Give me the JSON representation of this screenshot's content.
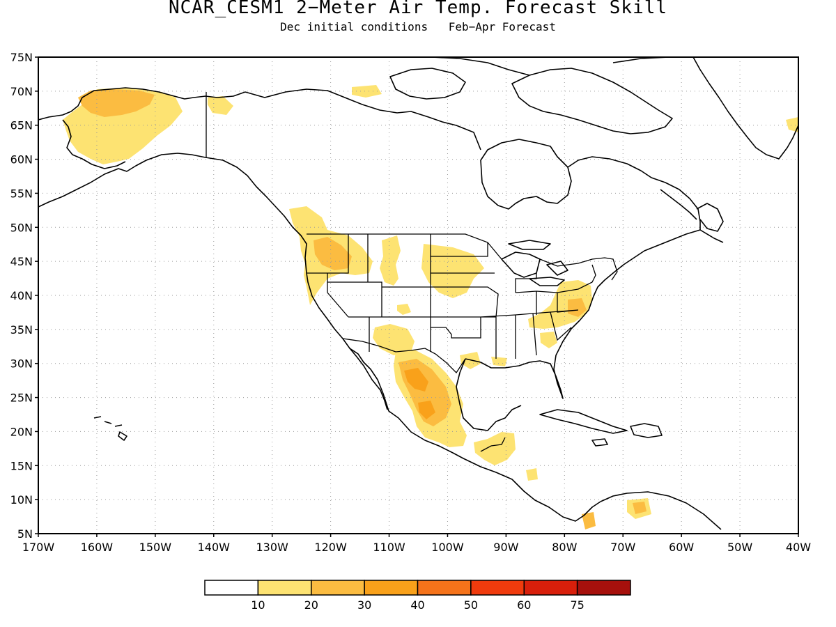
{
  "title": "NCAR_CESM1 2−Meter Air Temp. Forecast Skill",
  "subtitle_left": "Dec initial conditions",
  "subtitle_right": "Feb−Apr Forecast",
  "map": {
    "lat_range": [
      5,
      75
    ],
    "lon_range": [
      -170,
      -40
    ],
    "grid": "dotted",
    "lat_ticks": [
      "5N",
      "10N",
      "15N",
      "20N",
      "25N",
      "30N",
      "35N",
      "40N",
      "45N",
      "50N",
      "55N",
      "60N",
      "65N",
      "70N",
      "75N"
    ],
    "lon_ticks": [
      "170W",
      "160W",
      "150W",
      "140W",
      "130W",
      "120W",
      "110W",
      "100W",
      "90W",
      "80W",
      "70W",
      "60W",
      "50W",
      "40W"
    ],
    "skill_regions": [
      {
        "region": "Alaska",
        "level": 20
      },
      {
        "region": "Northern Alaska core",
        "level": 30
      },
      {
        "region": "Pacific Northwest",
        "level": 20
      },
      {
        "region": "Northern Plains",
        "level": 10
      },
      {
        "region": "Southwest US",
        "level": 10
      },
      {
        "region": "Mid-Atlantic US",
        "level": 20
      },
      {
        "region": "Southeast US",
        "level": 10
      },
      {
        "region": "Northern Mexico",
        "level": 20
      },
      {
        "region": "Central Mexico",
        "level": 30
      },
      {
        "region": "Central America",
        "level": 10
      },
      {
        "region": "Northern South America",
        "level": 20
      }
    ],
    "land_color": "#ffffff",
    "coast_color": "#000000"
  },
  "legend": {
    "labels": [
      "10",
      "20",
      "30",
      "40",
      "50",
      "60",
      "75"
    ],
    "colors": [
      "#ffffff",
      "#fde372",
      "#fbbc41",
      "#f9a11a",
      "#f5731a",
      "#f03b0d",
      "#d81f0b",
      "#a6100c"
    ]
  }
}
